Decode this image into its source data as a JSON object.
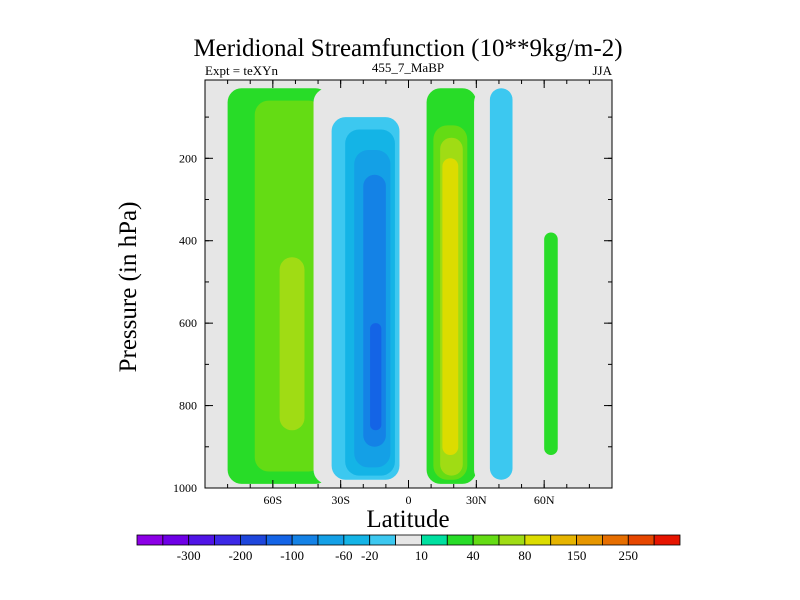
{
  "chart_data": {
    "type": "heatmap",
    "title": "Meridional Streamfunction (10**9kg/m-2)",
    "left_string": "Expt = teXYn",
    "center_string": "455_7_MaBP",
    "right_string": "JJA",
    "xlabel": "Latitude",
    "ylabel": "Pressure (in hPa)",
    "xlim": [
      -90,
      90
    ],
    "ylim": [
      1000,
      10
    ],
    "y_reversed": true,
    "x_ticks": [
      {
        "value": -60,
        "label": "60S"
      },
      {
        "value": -30,
        "label": "30S"
      },
      {
        "value": 0,
        "label": "0"
      },
      {
        "value": 30,
        "label": "30N"
      },
      {
        "value": 60,
        "label": "60N"
      }
    ],
    "y_ticks": [
      {
        "value": 200,
        "label": "200"
      },
      {
        "value": 400,
        "label": "400"
      },
      {
        "value": 600,
        "label": "600"
      },
      {
        "value": 800,
        "label": "800"
      },
      {
        "value": 1000,
        "label": "1000"
      }
    ],
    "background_color": "#e6e6e6",
    "colorbar": {
      "orientation": "horizontal",
      "labels": [
        "-300",
        "-200",
        "-100",
        "-60",
        "-20",
        "10",
        "40",
        "80",
        "150",
        "250"
      ],
      "levels": [
        -300,
        -250,
        -200,
        -150,
        -100,
        -80,
        -60,
        -40,
        -20,
        -10,
        0,
        10,
        20,
        40,
        60,
        80,
        100,
        150,
        200,
        250,
        300
      ],
      "colors": [
        "#8c00e6",
        "#6e00e6",
        "#5014e6",
        "#3c28e6",
        "#1e46dc",
        "#1464e6",
        "#1482e6",
        "#14a0e6",
        "#14b4e6",
        "#3cc8f0",
        "#e6e6e6",
        "#00e0a0",
        "#28dc28",
        "#64dc14",
        "#a0dc14",
        "#dcdc00",
        "#e6b400",
        "#e69600",
        "#e66e00",
        "#e64600",
        "#e61400"
      ],
      "label_under_boundary_index": [
        2,
        4,
        6,
        8,
        9,
        11,
        13,
        15,
        17,
        19
      ]
    },
    "contour_regions": [
      {
        "feature": "SH outer cell",
        "value": 10,
        "lat_range": [
          -80,
          -35
        ],
        "p_range": [
          30,
          990
        ]
      },
      {
        "feature": "SH Ferrel-like cell",
        "value": 20,
        "lat_range": [
          -68,
          -38
        ],
        "p_range": [
          60,
          960
        ]
      },
      {
        "feature": "SH cell core",
        "value": 40,
        "lat_range": [
          -57,
          -46
        ],
        "p_range": [
          440,
          860
        ]
      },
      {
        "feature": "Southern cell outer",
        "value": -10,
        "lat_range": [
          -42,
          0
        ],
        "p_range": [
          30,
          990
        ]
      },
      {
        "feature": "Southern cell",
        "value": -20,
        "lat_range": [
          -34,
          -4
        ],
        "p_range": [
          100,
          980
        ]
      },
      {
        "feature": "Southern cell",
        "value": -40,
        "lat_range": [
          -28,
          -6
        ],
        "p_range": [
          130,
          970
        ]
      },
      {
        "feature": "Southern cell",
        "value": -60,
        "lat_range": [
          -24,
          -8
        ],
        "p_range": [
          180,
          950
        ]
      },
      {
        "feature": "Southern cell",
        "value": -80,
        "lat_range": [
          -20,
          -10
        ],
        "p_range": [
          240,
          900
        ]
      },
      {
        "feature": "Southern cell core",
        "value": -100,
        "lat_range": [
          -17,
          -12
        ],
        "p_range": [
          600,
          860
        ]
      },
      {
        "feature": "Northern Hadley cell",
        "value": 10,
        "lat_range": [
          8,
          30
        ],
        "p_range": [
          30,
          990
        ]
      },
      {
        "feature": "Northern Hadley cell",
        "value": 20,
        "lat_range": [
          11,
          26
        ],
        "p_range": [
          120,
          980
        ]
      },
      {
        "feature": "Northern Hadley cell",
        "value": 40,
        "lat_range": [
          14,
          24
        ],
        "p_range": [
          150,
          970
        ]
      },
      {
        "feature": "Northern Hadley cell core",
        "value": 60,
        "lat_range": [
          15,
          22
        ],
        "p_range": [
          200,
          920
        ]
      },
      {
        "feature": "NH mid-latitude cell",
        "value": -10,
        "lat_range": [
          29,
          49
        ],
        "p_range": [
          30,
          990
        ]
      },
      {
        "feature": "NH mid-latitude cell",
        "value": -20,
        "lat_range": [
          36,
          46
        ],
        "p_range": [
          30,
          980
        ]
      },
      {
        "feature": "NH polar strip",
        "value": 10,
        "lat_range": [
          60,
          66
        ],
        "p_range": [
          380,
          920
        ]
      }
    ]
  }
}
